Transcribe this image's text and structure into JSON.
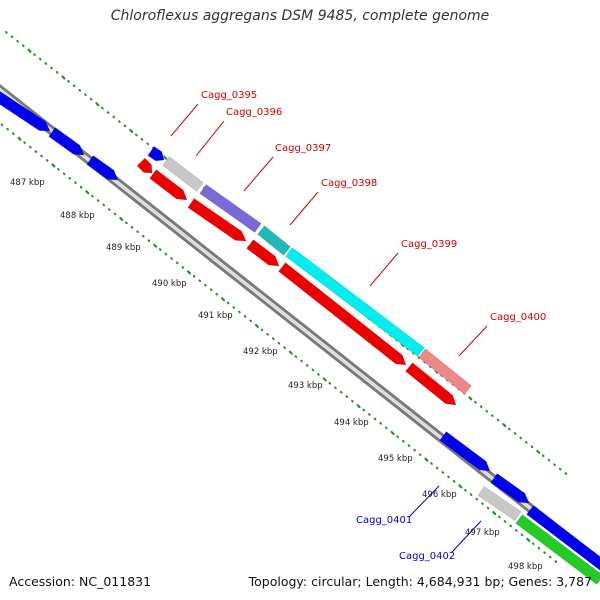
{
  "title": "Chloroflexus aggregans DSM 9485, complete genome",
  "footer": {
    "accession": "Accession: NC_011831",
    "summary": "Topology: circular; Length: 4,684,931 bp; Genes: 3,787"
  },
  "colors": {
    "background": "#ffffff",
    "backbone": "#808080",
    "tick": "#2e8b2e",
    "forward_gene": "#0000ee",
    "reverse_gene": "#ee0000",
    "label_red": "#cc0000",
    "label_blue": "#0000cc"
  },
  "scale_labels": [
    "487 kbp",
    "488 kbp",
    "489 kbp",
    "490 kbp",
    "491 kbp",
    "492 kbp",
    "493 kbp",
    "494 kbp",
    "495 kbp",
    "496 kbp",
    "497 kbp",
    "498 kbp"
  ],
  "gene_labels": [
    {
      "text": "Cagg_0395",
      "color": "red"
    },
    {
      "text": "Cagg_0396",
      "color": "red"
    },
    {
      "text": "Cagg_0397",
      "color": "red"
    },
    {
      "text": "Cagg_0398",
      "color": "red"
    },
    {
      "text": "Cagg_0399",
      "color": "red"
    },
    {
      "text": "Cagg_0400",
      "color": "red"
    },
    {
      "text": "Cagg_0401",
      "color": "blue"
    },
    {
      "text": "Cagg_0402",
      "color": "blue"
    }
  ]
}
